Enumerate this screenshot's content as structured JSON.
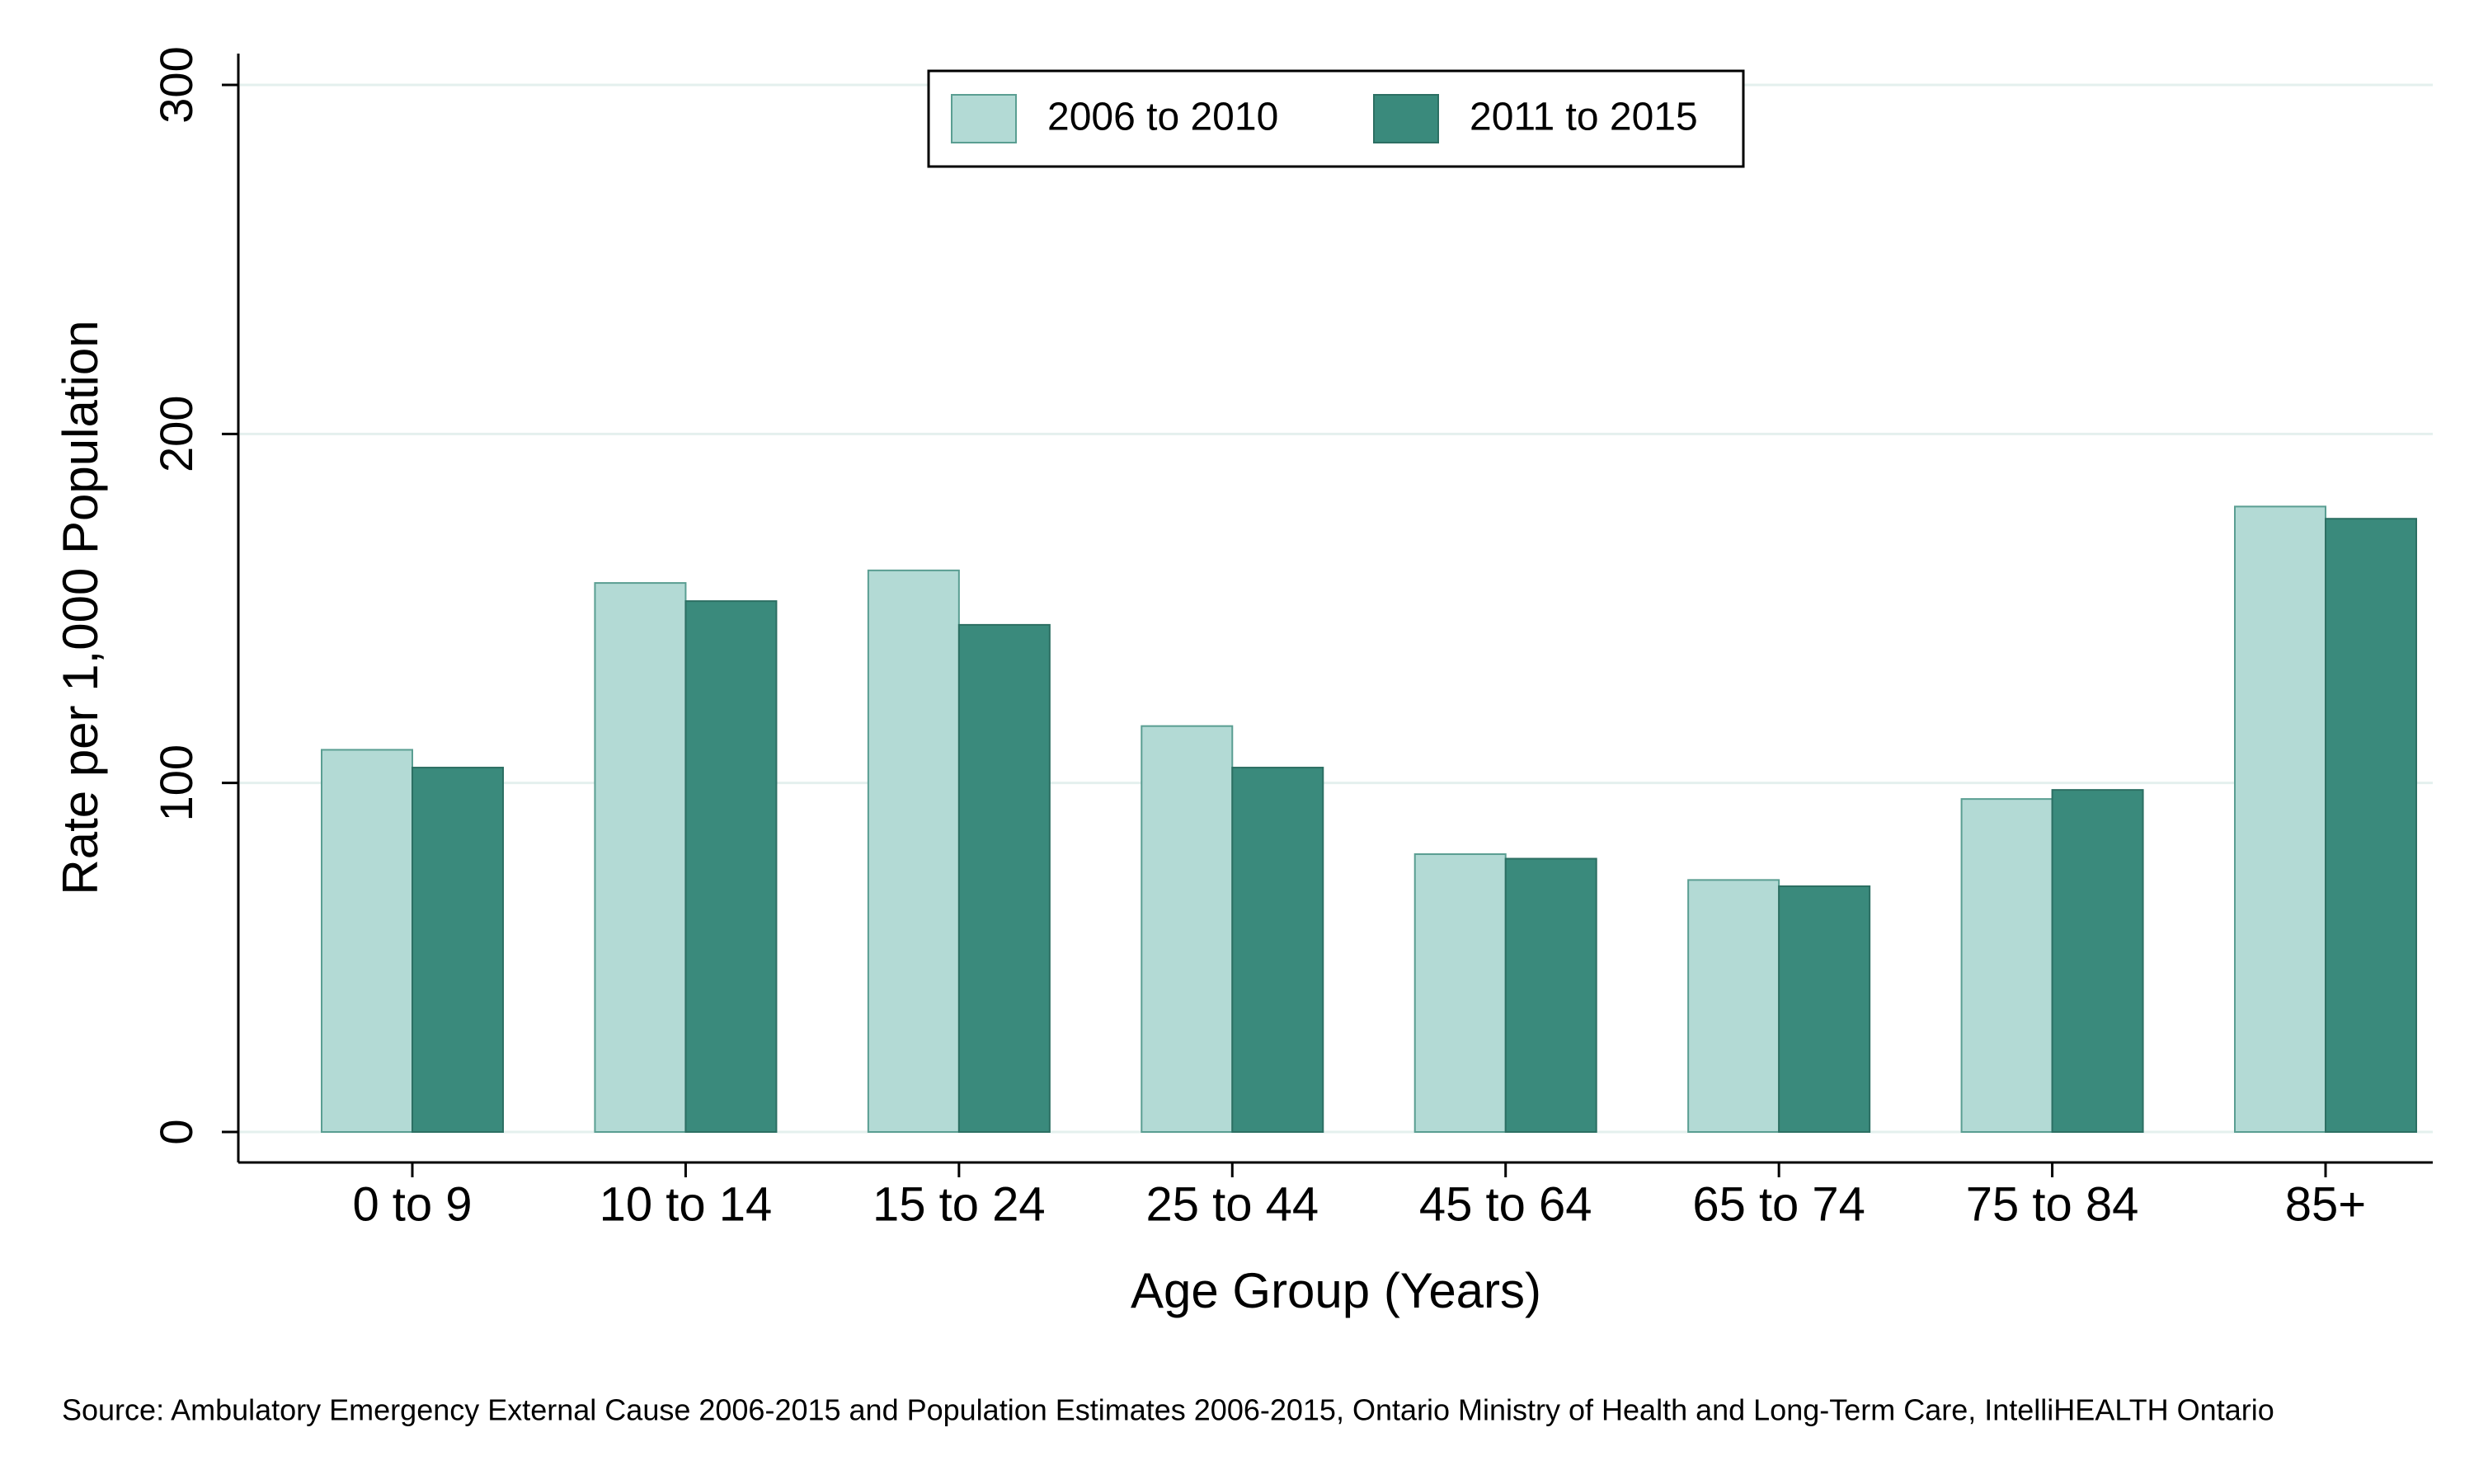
{
  "chart_data": {
    "type": "bar",
    "title": "",
    "xlabel": "Age Group (Years)",
    "ylabel": "Rate per 1,000 Population",
    "ylim": [
      0,
      300
    ],
    "yticks": [
      0,
      100,
      200,
      300
    ],
    "grid": "horizontal",
    "legend_position": "top-center",
    "categories": [
      "0 to 9",
      "10 to 14",
      "15 to 24",
      "25 to 44",
      "45 to 64",
      "65 to 74",
      "75 to 84",
      "85+"
    ],
    "series": [
      {
        "name": "2006 to 2010",
        "color": "#b3dad5",
        "values": [
          109.5,
          157.3,
          160.9,
          116.3,
          79.6,
          72.2,
          95.4,
          179.2
        ]
      },
      {
        "name": "2011 to 2015",
        "color": "#3a8a7c",
        "values": [
          104.4,
          152.1,
          145.3,
          104.4,
          78.3,
          70.4,
          98.0,
          175.7
        ]
      }
    ]
  },
  "footer": {
    "source": "Source: Ambulatory Emergency External Cause 2006-2015 and Population Estimates 2006-2015, Ontario Ministry of Health and Long-Term Care, IntelliHEALTH Ontario"
  }
}
